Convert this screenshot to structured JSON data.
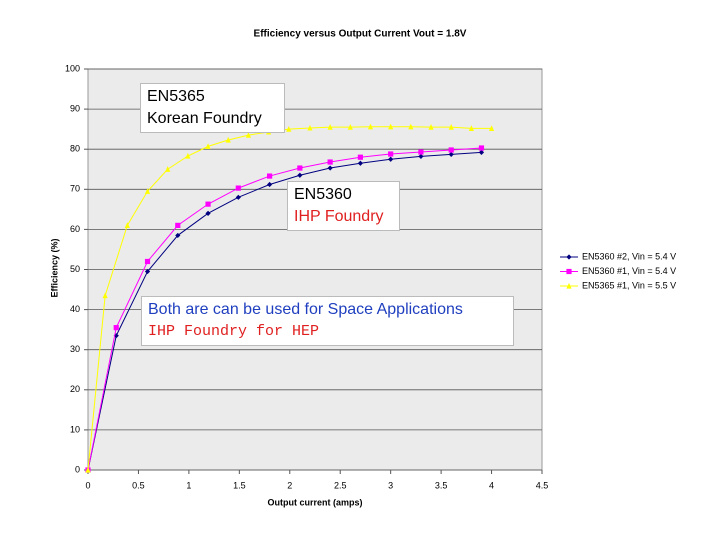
{
  "chart_data": {
    "type": "line",
    "title": "Efficiency versus Output Current Vout = 1.8V",
    "x_label": "Output current (amps)",
    "y_label": "Efficiency (%)",
    "xlim": [
      0,
      4.5
    ],
    "xticks": [
      0,
      0.5,
      1,
      1.5,
      2,
      2.5,
      3,
      3.5,
      4,
      4.5
    ],
    "ylim": [
      0,
      100
    ],
    "yticks": [
      0,
      10,
      20,
      30,
      40,
      50,
      60,
      70,
      80,
      90,
      100
    ],
    "grid": true,
    "legend": "right",
    "series": [
      {
        "name": "EN5360 #2, Vin = 5.4 V",
        "color": "#000080",
        "marker": "diamond",
        "x": [
          0,
          0.28,
          0.59,
          0.89,
          1.19,
          1.49,
          1.8,
          2.1,
          2.4,
          2.7,
          3.0,
          3.3,
          3.6,
          3.9
        ],
        "values": [
          0,
          33.5,
          49.5,
          58.5,
          64,
          68,
          71.2,
          73.5,
          75.3,
          76.5,
          77.5,
          78.2,
          78.7,
          79.2
        ]
      },
      {
        "name": "EN5360 #1, Vin = 5.4 V",
        "color": "#ff00ff",
        "marker": "square",
        "x": [
          0,
          0.28,
          0.59,
          0.89,
          1.19,
          1.49,
          1.8,
          2.1,
          2.4,
          2.7,
          3.0,
          3.3,
          3.6,
          3.9
        ],
        "values": [
          0,
          35.5,
          52,
          61,
          66.3,
          70.3,
          73.3,
          75.3,
          76.8,
          78,
          78.8,
          79.3,
          79.8,
          80.3
        ]
      },
      {
        "name": "EN5365 #1, Vin = 5.5 V",
        "color": "#ffff00",
        "marker": "triangle",
        "x": [
          0,
          0.17,
          0.39,
          0.59,
          0.79,
          0.99,
          1.19,
          1.39,
          1.59,
          1.79,
          1.99,
          2.2,
          2.4,
          2.6,
          2.8,
          3.0,
          3.2,
          3.4,
          3.6,
          3.8,
          4.0
        ],
        "values": [
          0,
          43.5,
          61,
          69.5,
          75,
          78.3,
          80.7,
          82.3,
          83.5,
          84.3,
          85,
          85.3,
          85.5,
          85.5,
          85.6,
          85.6,
          85.6,
          85.5,
          85.5,
          85.2,
          85.2
        ]
      }
    ]
  },
  "annotations": [
    {
      "lines": [
        "EN5365",
        "Korean Foundry"
      ]
    },
    {
      "lines": [
        "EN5360",
        "IHP Foundry"
      ]
    },
    {
      "lines": [
        "Both are can be used for Space Applications",
        "IHP Foundry for HEP"
      ]
    }
  ]
}
